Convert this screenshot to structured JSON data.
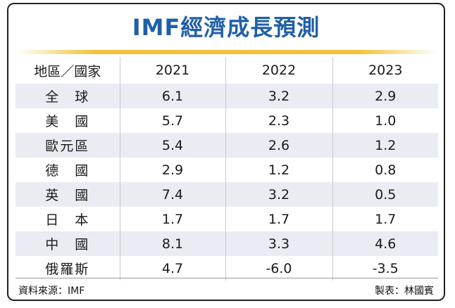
{
  "title": "IMF經濟成長預測",
  "header": {
    "region_label": "地區／國家",
    "years": [
      "2021",
      "2022",
      "2023"
    ]
  },
  "rows": [
    {
      "region": "全　球",
      "values": [
        "6.1",
        "3.2",
        "2.9"
      ]
    },
    {
      "region": "美　國",
      "values": [
        "5.7",
        "2.3",
        "1.0"
      ]
    },
    {
      "region": "歐元區",
      "values": [
        "5.4",
        "2.6",
        "1.2"
      ]
    },
    {
      "region": "德　國",
      "values": [
        "2.9",
        "1.2",
        "0.8"
      ]
    },
    {
      "region": "英　國",
      "values": [
        "7.4",
        "3.2",
        "0.5"
      ]
    },
    {
      "region": "日　本",
      "values": [
        "1.7",
        "1.7",
        "1.7"
      ]
    },
    {
      "region": "中　國",
      "values": [
        "8.1",
        "3.3",
        "4.6"
      ]
    },
    {
      "region": "俄羅斯",
      "values": [
        "4.7",
        "-6.0",
        "-3.5"
      ]
    }
  ],
  "footer": {
    "source": "資料來源：IMF",
    "credit": "製表：林國賓"
  },
  "colors": {
    "title": "#1f5fa8",
    "accent_rule": "#f2c33a",
    "row_stripe": "#e9ecf3"
  },
  "chart_data": {
    "type": "table",
    "title": "IMF經濟成長預測",
    "columns": [
      "地區／國家",
      "2021",
      "2022",
      "2023"
    ],
    "categories": [
      "全　球",
      "美　國",
      "歐元區",
      "德　國",
      "英　國",
      "日　本",
      "中　國",
      "俄羅斯"
    ],
    "series": [
      {
        "name": "2021",
        "values": [
          6.1,
          5.7,
          5.4,
          2.9,
          7.4,
          1.7,
          8.1,
          4.7
        ]
      },
      {
        "name": "2022",
        "values": [
          3.2,
          2.3,
          2.6,
          1.2,
          3.2,
          1.7,
          3.3,
          -6.0
        ]
      },
      {
        "name": "2023",
        "values": [
          2.9,
          1.0,
          1.2,
          0.8,
          0.5,
          1.7,
          4.6,
          -3.5
        ]
      }
    ]
  }
}
